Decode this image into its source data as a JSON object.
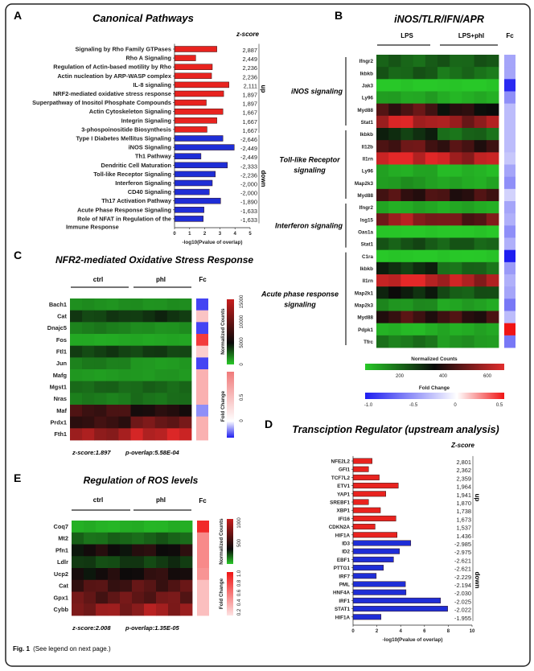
{
  "figure": {
    "caption_label": "Fig. 1",
    "caption_text": "(See legend on next page.)",
    "panel_letters": [
      "A",
      "B",
      "C",
      "D",
      "E"
    ]
  },
  "colors": {
    "up": "#e8231f",
    "down": "#1f2ed6"
  },
  "chart_data": [
    {
      "type": "bar",
      "orientation": "horizontal",
      "title": "Canonical Pathways",
      "zscore_header": "z-score",
      "xlabel": "-log10(Pvalue of overlap)",
      "xlim": [
        0,
        5
      ],
      "xticks": [
        "0",
        "1",
        "2",
        "3",
        "4",
        "5"
      ],
      "group_labels": [
        "up",
        "down"
      ],
      "up_count": 10,
      "categories": [
        "Signaling by Rho Family GTPases",
        "Rho A Signaling",
        "Regulation of Actin-based motility by Rho",
        "Actin nucleation by ARP-WASP complex",
        "IL-8 signaling",
        "NRF2-mediated oxidative stress response",
        "Superpathway of Inositol Phosphate Compounds",
        "Actin Cytoskeleton Signaling",
        "Integrin Signaling",
        "3-phospoinositide Biosynthesis",
        "Type I Diabetes Mellitus Signaling",
        "iNOS Signaling",
        "Th1 Pathway",
        "Dendritic Cell Maturation",
        "Toll-like Receptor Signaling",
        "Interferon Signaling",
        "CD40 Signaling",
        "Th17 Activation Pathway",
        "Acute Phase Response Signaling",
        "Role of NFAT in Regulation of the\nImmune Response"
      ],
      "values": [
        2.8,
        1.4,
        2.5,
        2.45,
        3.6,
        3.25,
        2.1,
        3.2,
        2.8,
        2.15,
        3.2,
        3.95,
        1.75,
        3.5,
        2.7,
        2.5,
        2.3,
        3.05,
        1.95,
        1.9
      ],
      "zscores": [
        "2,887",
        "2,449",
        "2,236",
        "2,236",
        "2,111",
        "1,897",
        "1,897",
        "1,667",
        "1,667",
        "1,667",
        "-2,646",
        "-2,449",
        "-2,449",
        "-2,333",
        "-2,236",
        "-2,000",
        "-2,000",
        "-1,890",
        "-1,633",
        "-1,633"
      ]
    },
    {
      "type": "heatmap",
      "title": "iNOS/TLR/IFN/APR",
      "column_groups": [
        "LPS",
        "LPS+phl"
      ],
      "fc_label": "Fc",
      "counts_legend": {
        "label": "Normalized Counts",
        "ticks": [
          "200",
          "400",
          "600"
        ]
      },
      "fc_legend": {
        "label": "Fold Change",
        "ticks": [
          "-1.0",
          "-0.5",
          "0",
          "0.5"
        ]
      },
      "row_groups": [
        {
          "name": "iNOS signaling",
          "rows": [
            {
              "gene": "Ifngr2",
              "ctrl": 260,
              "phl": 270,
              "fc": -0.4
            },
            {
              "gene": "Ikbkb",
              "ctrl": 270,
              "phl": 240,
              "fc": -0.4
            },
            {
              "gene": "Jak3",
              "ctrl": 100,
              "phl": 100,
              "fc": -0.95
            },
            {
              "gene": "Ly96",
              "ctrl": 160,
              "phl": 140,
              "fc": -0.5
            },
            {
              "gene": "Myd88",
              "ctrl": 490,
              "phl": 420,
              "fc": -0.3
            },
            {
              "gene": "Stat1",
              "ctrl": 650,
              "phl": 580,
              "fc": -0.3
            }
          ]
        },
        {
          "name": "Toll-like Receptor\nsignaling",
          "rows": [
            {
              "gene": "Ikbkb",
              "ctrl": 340,
              "phl": 250,
              "fc": -0.3
            },
            {
              "gene": "Il12b",
              "ctrl": 510,
              "phl": 470,
              "fc": -0.3
            },
            {
              "gene": "Il1rn",
              "ctrl": 690,
              "phl": 620,
              "fc": -0.25
            },
            {
              "gene": "Ly96",
              "ctrl": 150,
              "phl": 130,
              "fc": -0.4
            },
            {
              "gene": "Map2k3",
              "ctrl": 180,
              "phl": 150,
              "fc": -0.5
            },
            {
              "gene": "Myd88",
              "ctrl": 470,
              "phl": 460,
              "fc": -0.2
            }
          ]
        },
        {
          "name": "Interferon signaling",
          "rows": [
            {
              "gene": "Ifngr2",
              "ctrl": 150,
              "phl": 150,
              "fc": -0.4
            },
            {
              "gene": "Isg15",
              "ctrl": 590,
              "phl": 520,
              "fc": -0.35
            },
            {
              "gene": "Oas1a",
              "ctrl": 100,
              "phl": 100,
              "fc": -0.5
            },
            {
              "gene": "Stat1",
              "ctrl": 285,
              "phl": 270,
              "fc": -0.35
            }
          ]
        },
        {
          "name": "Acute phase response\nsignaling",
          "rows": [
            {
              "gene": "C1ra",
              "ctrl": 100,
              "phl": 100,
              "fc": -1.0
            },
            {
              "gene": "Ikbkb",
              "ctrl": 340,
              "phl": 250,
              "fc": -0.45
            },
            {
              "gene": "Il1rn",
              "ctrl": 690,
              "phl": 620,
              "fc": -0.35
            },
            {
              "gene": "Map2k1",
              "ctrl": 370,
              "phl": 280,
              "fc": -0.4
            },
            {
              "gene": "Map2k3",
              "ctrl": 190,
              "phl": 160,
              "fc": -0.6
            },
            {
              "gene": "Myd88",
              "ctrl": 470,
              "phl": 460,
              "fc": -0.3
            },
            {
              "gene": "Pdpk1",
              "ctrl": 130,
              "phl": 150,
              "fc": 0.5
            },
            {
              "gene": "Tfrc",
              "ctrl": 230,
              "phl": 180,
              "fc": -0.6
            }
          ]
        }
      ]
    },
    {
      "type": "heatmap",
      "title": "NFR2-mediated Oxidative Stress Response",
      "column_groups": [
        "ctrl",
        "phl"
      ],
      "fc_label": "Fc",
      "counts_legend": {
        "label": "Normalized Counts",
        "ticks": [
          "0",
          "5000",
          "10000",
          "15000"
        ]
      },
      "fc_legend": {
        "label": "Fold Change",
        "ticks": [
          "0",
          "0.5"
        ]
      },
      "zscore": "z-score:1.897",
      "p_overlap": "p-overlap:5.58E-04",
      "rows": [
        {
          "gene": "Bach1",
          "ctrl": 1500,
          "phl": 1500,
          "fc": -0.5
        },
        {
          "gene": "Cat",
          "ctrl": 3600,
          "phl": 4000,
          "fc": 0.3
        },
        {
          "gene": "Dnajc5",
          "ctrl": 2000,
          "phl": 1500,
          "fc": -0.5
        },
        {
          "gene": "Fos",
          "ctrl": 800,
          "phl": 900,
          "fc": 1.0
        },
        {
          "gene": "Ftl1",
          "ctrl": 3600,
          "phl": 3600,
          "fc": 0.25
        },
        {
          "gene": "Jun",
          "ctrl": 2000,
          "phl": 1200,
          "fc": -0.5
        },
        {
          "gene": "Mafg",
          "ctrl": 1200,
          "phl": 1300,
          "fc": 0.4
        },
        {
          "gene": "Mgst1",
          "ctrl": 2600,
          "phl": 2600,
          "fc": 0.4
        },
        {
          "gene": "Nras",
          "ctrl": 2000,
          "phl": 2300,
          "fc": 0.4
        },
        {
          "gene": "Maf",
          "ctrl": 7500,
          "phl": 6000,
          "fc": -0.3
        },
        {
          "gene": "Prdx1",
          "ctrl": 7000,
          "phl": 9500,
          "fc": 0.4
        },
        {
          "gene": "Fth1",
          "ctrl": 11500,
          "phl": 13500,
          "fc": 0.4
        }
      ]
    },
    {
      "type": "bar",
      "orientation": "horizontal",
      "title": "Transciption Regulator (upstream analysis)",
      "zscore_header": "Z-score",
      "xlabel": "-log10(Pvalue of overlap)",
      "xlim": [
        0,
        10
      ],
      "xticks": [
        "0",
        "2",
        "4",
        "6",
        "8",
        "10"
      ],
      "group_labels": [
        "up",
        "down"
      ],
      "up_count": 10,
      "categories": [
        "NFE2L2",
        "GFI1",
        "TCF7L2",
        "ETV1",
        "YAP1",
        "SREBF1",
        "XBP1",
        "IFI16",
        "CDKN2A",
        "HIF1A",
        "ID3",
        "ID2",
        "EBF1",
        "PTTG1",
        "IRF7",
        "PML",
        "HNF4A",
        "IRF1",
        "STAT1",
        "HIF1A"
      ],
      "values": [
        1.6,
        1.3,
        2.2,
        3.8,
        2.75,
        1.3,
        2.3,
        3.6,
        1.85,
        3.7,
        4.85,
        3.9,
        3.4,
        2.55,
        1.95,
        4.4,
        4.45,
        7.35,
        7.95,
        2.35
      ],
      "zscores": [
        "2,801",
        "2,362",
        "2,359",
        "1,964",
        "1,941",
        "1,870",
        "1,738",
        "1,673",
        "1,537",
        "1.436",
        "-2.985",
        "-2.975",
        "-2.621",
        "-2.621",
        "-2.229",
        "-2.194",
        "-2.030",
        "-2.025",
        "-2.022",
        "-1.955"
      ]
    },
    {
      "type": "heatmap",
      "title": "Regulation of ROS levels",
      "column_groups": [
        "ctrl",
        "phl"
      ],
      "fc_label": "Fc",
      "counts_legend": {
        "label": "Normalized Counts",
        "ticks": [
          "500",
          "1000"
        ]
      },
      "fc_legend": {
        "label": "Fold Change",
        "ticks": [
          "0.2",
          "0.4",
          "0.6",
          "0.8",
          "1.0"
        ]
      },
      "zscore": "z-score:2.008",
      "p_overlap": "p-overlap:1.35E-05",
      "rows": [
        {
          "gene": "Coq7",
          "ctrl": 150,
          "phl": 150,
          "fc": 1.0
        },
        {
          "gene": "Mt2",
          "ctrl": 300,
          "phl": 320,
          "fc": 0.55
        },
        {
          "gene": "Pfn1",
          "ctrl": 520,
          "phl": 540,
          "fc": 0.55
        },
        {
          "gene": "Ldlr",
          "ctrl": 380,
          "phl": 400,
          "fc": 0.55
        },
        {
          "gene": "Ucp2",
          "ctrl": 520,
          "phl": 560,
          "fc": 0.5
        },
        {
          "gene": "Cat",
          "ctrl": 640,
          "phl": 660,
          "fc": 0.3
        },
        {
          "gene": "Gpx1",
          "ctrl": 690,
          "phl": 710,
          "fc": 0.3
        },
        {
          "gene": "Cybb",
          "ctrl": 790,
          "phl": 830,
          "fc": 0.3
        }
      ]
    }
  ]
}
